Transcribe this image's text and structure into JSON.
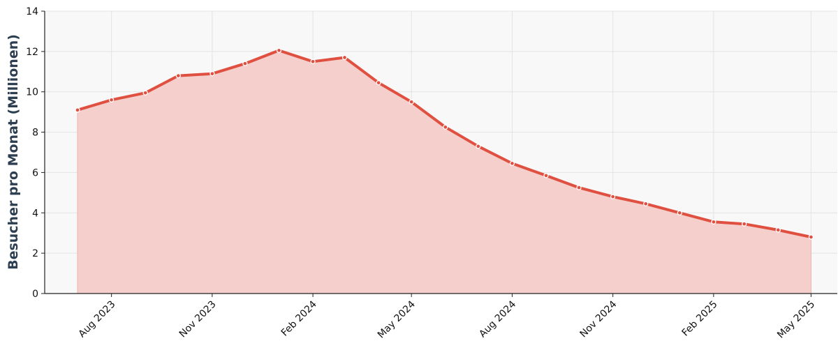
{
  "chart_data": {
    "type": "area",
    "title": "",
    "xlabel": "",
    "ylabel": "Besucher pro Monat (Millionen)",
    "ylim": [
      0,
      14
    ],
    "yticks": [
      0,
      2,
      4,
      6,
      8,
      10,
      12,
      14
    ],
    "xlim": [
      "2023-06-01",
      "2025-05-25"
    ],
    "xticks": [
      {
        "date": "2023-08-01",
        "label": "Aug 2023"
      },
      {
        "date": "2023-11-01",
        "label": "Nov 2023"
      },
      {
        "date": "2024-02-01",
        "label": "Feb 2024"
      },
      {
        "date": "2024-05-01",
        "label": "May 2024"
      },
      {
        "date": "2024-08-01",
        "label": "Aug 2024"
      },
      {
        "date": "2024-11-01",
        "label": "Nov 2024"
      },
      {
        "date": "2025-02-01",
        "label": "Feb 2025"
      },
      {
        "date": "2025-05-01",
        "label": "May 2025"
      }
    ],
    "grid": true,
    "line_color": "#e05040",
    "fill_color": "#f5cfcc",
    "background_color": "#f8f8f8",
    "series": [
      {
        "x": [
          "2023-07-01",
          "2023-08-01",
          "2023-09-01",
          "2023-10-01",
          "2023-11-01",
          "2023-12-01",
          "2024-01-01",
          "2024-02-01",
          "2024-03-01",
          "2024-04-01",
          "2024-05-01",
          "2024-06-01",
          "2024-07-01",
          "2024-08-01",
          "2024-09-01",
          "2024-10-01",
          "2024-11-01",
          "2024-12-01",
          "2025-01-01",
          "2025-02-01",
          "2025-03-01",
          "2025-04-01",
          "2025-05-01"
        ],
        "values": [
          9.1,
          9.6,
          9.95,
          10.8,
          10.9,
          11.4,
          12.05,
          11.5,
          11.7,
          10.45,
          9.5,
          8.25,
          7.3,
          6.45,
          5.85,
          5.25,
          4.8,
          4.45,
          4.0,
          3.55,
          3.45,
          3.15,
          2.8
        ]
      }
    ]
  }
}
